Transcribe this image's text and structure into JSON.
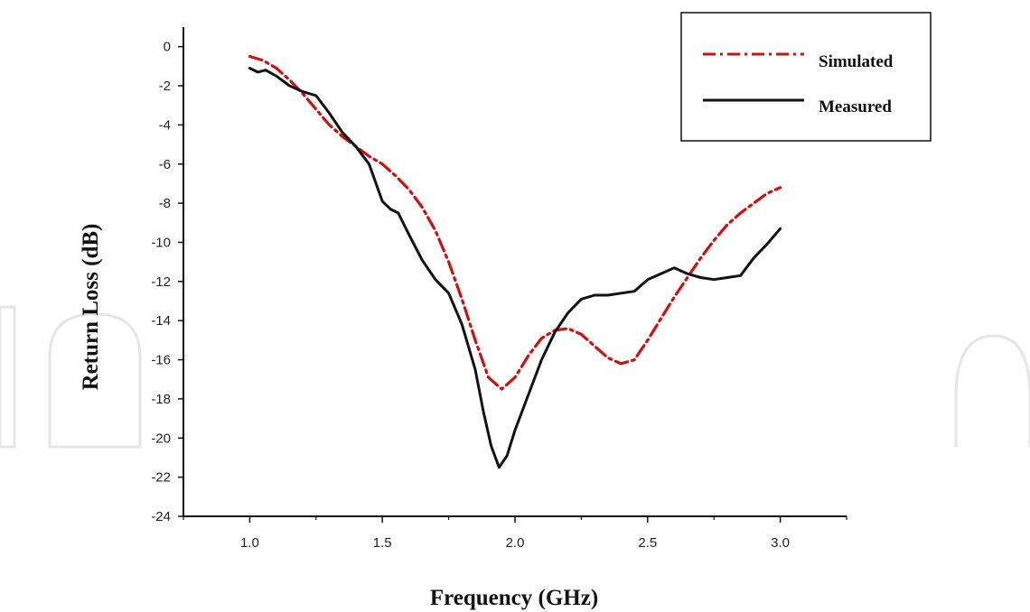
{
  "chart_data": {
    "type": "line",
    "title": "",
    "xlabel": "Frequency (GHz)",
    "ylabel": "Return Loss (dB)",
    "xlim": [
      0.75,
      3.25
    ],
    "ylim": [
      -24,
      1
    ],
    "x_ticks": [
      1.0,
      1.5,
      2.0,
      2.5,
      3.0
    ],
    "x_tick_labels": [
      "1.0",
      "1.5",
      "2.0",
      "2.5",
      "3.0"
    ],
    "y_ticks": [
      0,
      -2,
      -4,
      -6,
      -8,
      -10,
      -12,
      -14,
      -16,
      -18,
      -20,
      -22,
      -24
    ],
    "y_tick_labels": [
      "0",
      "-2",
      "-4",
      "-6",
      "-8",
      "-10",
      "-12",
      "-14",
      "-16",
      "-18",
      "-20",
      "-22",
      "-24"
    ],
    "grid": false,
    "legend_position": "top-right",
    "series": [
      {
        "name": "Simulated",
        "color": "#cc1111",
        "style": "dash-dot",
        "x": [
          1.0,
          1.05,
          1.1,
          1.15,
          1.2,
          1.25,
          1.3,
          1.35,
          1.4,
          1.45,
          1.5,
          1.55,
          1.6,
          1.65,
          1.7,
          1.75,
          1.8,
          1.85,
          1.9,
          1.95,
          2.0,
          2.05,
          2.1,
          2.15,
          2.2,
          2.25,
          2.3,
          2.35,
          2.4,
          2.45,
          2.5,
          2.55,
          2.6,
          2.65,
          2.7,
          2.75,
          2.8,
          2.85,
          2.9,
          2.95,
          3.0
        ],
        "y": [
          -0.5,
          -0.7,
          -1.1,
          -1.7,
          -2.4,
          -3.2,
          -4.0,
          -4.6,
          -5.1,
          -5.6,
          -6.0,
          -6.6,
          -7.3,
          -8.2,
          -9.4,
          -11.0,
          -12.9,
          -15.0,
          -16.9,
          -17.5,
          -16.9,
          -15.8,
          -14.9,
          -14.5,
          -14.4,
          -14.7,
          -15.3,
          -15.9,
          -16.2,
          -16.0,
          -15.0,
          -13.9,
          -12.8,
          -11.8,
          -10.8,
          -9.9,
          -9.1,
          -8.5,
          -8.0,
          -7.5,
          -7.2
        ]
      },
      {
        "name": "Measured",
        "color": "#111111",
        "style": "solid",
        "x": [
          1.0,
          1.03,
          1.06,
          1.1,
          1.15,
          1.2,
          1.25,
          1.3,
          1.35,
          1.4,
          1.45,
          1.5,
          1.53,
          1.56,
          1.6,
          1.65,
          1.7,
          1.75,
          1.8,
          1.85,
          1.88,
          1.91,
          1.94,
          1.97,
          2.0,
          2.05,
          2.1,
          2.15,
          2.2,
          2.25,
          2.3,
          2.35,
          2.4,
          2.45,
          2.5,
          2.55,
          2.6,
          2.65,
          2.7,
          2.75,
          2.8,
          2.85,
          2.9,
          2.95,
          3.0
        ],
        "y": [
          -1.1,
          -1.3,
          -1.2,
          -1.5,
          -2.0,
          -2.3,
          -2.5,
          -3.4,
          -4.4,
          -5.1,
          -6.0,
          -7.9,
          -8.3,
          -8.5,
          -9.6,
          -10.9,
          -11.9,
          -12.6,
          -14.2,
          -16.5,
          -18.6,
          -20.4,
          -21.5,
          -20.9,
          -19.6,
          -17.8,
          -16.0,
          -14.6,
          -13.6,
          -12.9,
          -12.7,
          -12.7,
          -12.6,
          -12.5,
          -11.9,
          -11.6,
          -11.3,
          -11.6,
          -11.8,
          -11.9,
          -11.8,
          -11.7,
          -10.8,
          -10.1,
          -9.3
        ]
      }
    ]
  }
}
